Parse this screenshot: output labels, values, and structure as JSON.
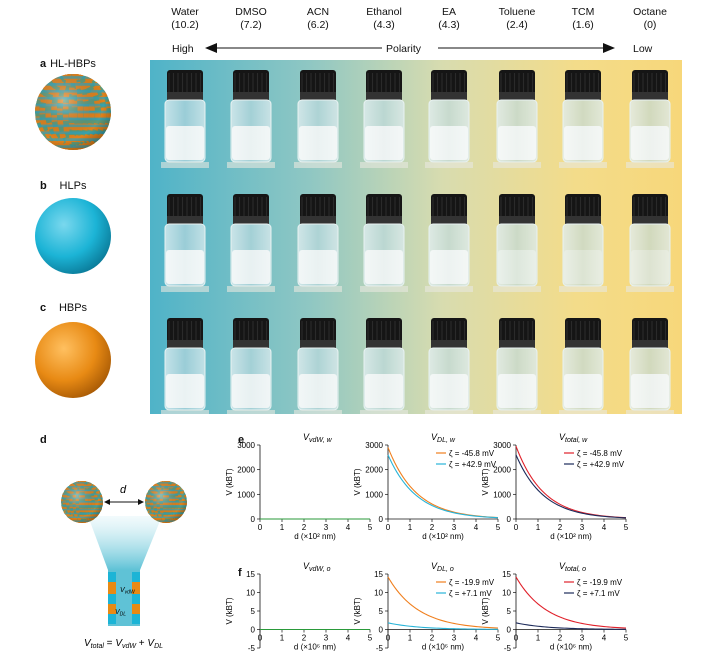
{
  "solvents": [
    {
      "name": "Water",
      "polarity": "(10.2)"
    },
    {
      "name": "DMSO",
      "polarity": "(7.2)"
    },
    {
      "name": "ACN",
      "polarity": "(6.2)"
    },
    {
      "name": "Ethanol",
      "polarity": "(4.3)"
    },
    {
      "name": "EA",
      "polarity": "(4.3)"
    },
    {
      "name": "Toluene",
      "polarity": "(2.4)"
    },
    {
      "name": "TCM",
      "polarity": "(1.6)"
    },
    {
      "name": "Octane",
      "polarity": "(0)"
    }
  ],
  "polarity_axis": {
    "high": "High",
    "label": "Polarity",
    "low": "Low"
  },
  "rows": [
    {
      "letter": "a",
      "label": "HL-HBPs",
      "particle": "striped-sphere",
      "color": "#2aa6c4",
      "stripe": "#e0821c"
    },
    {
      "letter": "b",
      "label": "HLPs",
      "particle": "sphere",
      "color": "#1cb4d6"
    },
    {
      "letter": "c",
      "label": "HBPs",
      "particle": "sphere",
      "color": "#e88a14"
    }
  ],
  "panel_d": {
    "letter": "d",
    "distance_label": "d",
    "vdw_label": "VvdW",
    "dl_label": "VDL",
    "equation": "Vtotal = VvdW + VDL"
  },
  "panel_e_letter": "e",
  "panel_f_letter": "f",
  "chart_data": [
    {
      "type": "line",
      "title": "VvdW, w",
      "xlabel": "d (×10² nm)",
      "ylabel": "V (kBT)",
      "xlim": [
        0,
        5
      ],
      "ylim": [
        0,
        3000
      ],
      "xticks": [
        0,
        1,
        2,
        3,
        4,
        5
      ],
      "yticks": [
        0,
        1000,
        2000,
        3000
      ],
      "series": [
        {
          "values": [
            [
              0,
              0
            ],
            [
              5,
              0
            ]
          ],
          "color": "#2a9a3a"
        }
      ]
    },
    {
      "type": "line",
      "title": "VDL, w",
      "xlabel": "d (×10² nm)",
      "ylabel": "V (kBT)",
      "xlim": [
        0,
        5
      ],
      "ylim": [
        0,
        3000
      ],
      "xticks": [
        0,
        1,
        2,
        3,
        4,
        5
      ],
      "yticks": [
        0,
        1000,
        2000,
        3000
      ],
      "series": [
        {
          "name": "ζ = -45.8 mV",
          "color": "#f07f1e",
          "amp": 2900,
          "decay": 0.78
        },
        {
          "name": "ζ = +42.9 mV",
          "color": "#28b4d8",
          "amp": 2600,
          "decay": 0.78
        }
      ]
    },
    {
      "type": "line",
      "title": "Vtotal, w",
      "xlabel": "d (×10² nm)",
      "ylabel": "V (kBT)",
      "xlim": [
        0,
        5
      ],
      "ylim": [
        0,
        3000
      ],
      "xticks": [
        0,
        1,
        2,
        3,
        4,
        5
      ],
      "yticks": [
        0,
        1000,
        2000,
        3000
      ],
      "series": [
        {
          "name": "ζ = -45.8 mV",
          "color": "#e0202a",
          "amp": 2950,
          "decay": 0.8
        },
        {
          "name": "ζ = +42.9 mV",
          "color": "#1c2a5a",
          "amp": 2600,
          "decay": 0.8
        }
      ]
    },
    {
      "type": "line",
      "title": "VvdW, o",
      "xlabel": "d (×10⁶ nm)",
      "ylabel": "V (kBT)",
      "xlim": [
        0,
        5
      ],
      "ylim": [
        -5,
        15
      ],
      "xticks": [
        0,
        1,
        2,
        3,
        4,
        5
      ],
      "yticks": [
        -5,
        0,
        5,
        10,
        15
      ],
      "series": [
        {
          "values": [
            [
              0,
              0
            ],
            [
              5,
              0
            ]
          ],
          "color": "#2a9a3a"
        }
      ]
    },
    {
      "type": "line",
      "title": "VDL, o",
      "xlabel": "d (×10⁶ nm)",
      "ylabel": "V (kBT)",
      "xlim": [
        0,
        5
      ],
      "ylim": [
        -5,
        15
      ],
      "xticks": [
        0,
        1,
        2,
        3,
        4,
        5
      ],
      "yticks": [
        -5,
        0,
        5,
        10,
        15
      ],
      "series": [
        {
          "name": "ζ = -19.9 mV",
          "color": "#f07f1e",
          "amp": 14.2,
          "decay": 0.72
        },
        {
          "name": "ζ = +7.1 mV",
          "color": "#28b4d8",
          "amp": 1.8,
          "decay": 0.72
        }
      ]
    },
    {
      "type": "line",
      "title": "Vtotal, o",
      "xlabel": "d (×10⁶ nm)",
      "ylabel": "V (kBT)",
      "xlim": [
        0,
        5
      ],
      "ylim": [
        -5,
        15
      ],
      "xticks": [
        0,
        1,
        2,
        3,
        4,
        5
      ],
      "yticks": [
        -5,
        0,
        5,
        10,
        15
      ],
      "series": [
        {
          "name": "ζ = -19.9 mV",
          "color": "#e0202a",
          "amp": 14.2,
          "decay": 0.72
        },
        {
          "name": "ζ = +7.1 mV",
          "color": "#1c2a5a",
          "amp": 1.8,
          "decay": 0.72
        }
      ]
    }
  ]
}
